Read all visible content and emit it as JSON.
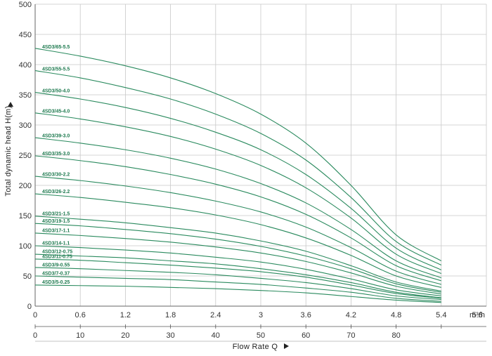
{
  "chart_data": {
    "type": "line",
    "title": "",
    "ylabel": "Total dynamic head H(m)",
    "xlabel": "Flow Rate Q",
    "x_unit": "m³/h",
    "xlim_m3h": [
      0,
      6.0
    ],
    "ylim": [
      0,
      500
    ],
    "grid": true,
    "y_ticks": [
      "0",
      "50",
      "100",
      "150",
      "200",
      "250",
      "300",
      "350",
      "400",
      "450",
      "500"
    ],
    "x_ticks_m3h": [
      "0",
      "0.6",
      "1.2",
      "1.8",
      "2.4",
      "3",
      "3.6",
      "4.2",
      "4.8",
      "5.4",
      "5.6"
    ],
    "x_ticks_secondary": [
      "0",
      "10",
      "20",
      "30",
      "40",
      "50",
      "60",
      "70",
      "80",
      ""
    ],
    "x": [
      0,
      0.6,
      1.2,
      1.8,
      2.4,
      3.0,
      3.6,
      4.2,
      4.8,
      5.4
    ],
    "series": [
      {
        "name": "4SD3/65-5.5",
        "values": [
          427,
          414,
          398,
          378,
          352,
          318,
          270,
          200,
          118,
          75
        ]
      },
      {
        "name": "4SD3/55-5.5",
        "values": [
          390,
          378,
          362,
          343,
          318,
          286,
          242,
          180,
          107,
          68
        ]
      },
      {
        "name": "4SD3/50-4.0",
        "values": [
          354,
          343,
          329,
          311,
          288,
          259,
          218,
          162,
          96,
          60
        ]
      },
      {
        "name": "4SD3/45-4.0",
        "values": [
          320,
          310,
          297,
          281,
          260,
          233,
          196,
          146,
          86,
          54
        ]
      },
      {
        "name": "4SD3/39-3.0",
        "values": [
          279,
          270,
          259,
          245,
          227,
          203,
          171,
          127,
          75,
          47
        ]
      },
      {
        "name": "4SD3/35-3.0",
        "values": [
          249,
          241,
          231,
          218,
          202,
          181,
          152,
          113,
          67,
          42
        ]
      },
      {
        "name": "4SD3/30-2.2",
        "values": [
          215,
          208,
          199,
          188,
          174,
          156,
          131,
          97,
          58,
          36
        ]
      },
      {
        "name": "4SD3/26-2.2",
        "values": [
          186,
          180,
          172,
          163,
          151,
          135,
          113,
          84,
          50,
          31
        ]
      },
      {
        "name": "4SD3/21-1.5",
        "values": [
          149,
          144,
          138,
          130,
          121,
          108,
          91,
          67,
          40,
          25
        ]
      },
      {
        "name": "4SD3/19-1.5",
        "values": [
          137,
          133,
          127,
          120,
          111,
          99,
          83,
          62,
          37,
          23
        ]
      },
      {
        "name": "4SD3/17-1.1",
        "values": [
          121,
          117,
          112,
          106,
          98,
          88,
          74,
          55,
          33,
          20
        ]
      },
      {
        "name": "4SD3/14-1.1",
        "values": [
          100,
          97,
          93,
          88,
          81,
          73,
          61,
          45,
          27,
          17
        ]
      },
      {
        "name": "4SD3/12-0.75",
        "values": [
          86,
          83,
          80,
          75,
          70,
          62,
          52,
          39,
          23,
          14
        ]
      },
      {
        "name": "4SD3/11-0.75",
        "values": [
          78,
          76,
          72,
          68,
          63,
          57,
          48,
          35,
          21,
          13
        ]
      },
      {
        "name": "4SD3/9-0.55",
        "values": [
          64,
          62,
          59,
          56,
          52,
          46,
          39,
          29,
          17,
          11
        ]
      },
      {
        "name": "4SD3/7-0.37",
        "values": [
          50,
          48,
          46,
          44,
          40,
          36,
          30,
          23,
          13,
          8
        ]
      },
      {
        "name": "4SD3/5-0.25",
        "values": [
          35,
          34,
          33,
          31,
          29,
          26,
          22,
          16,
          10,
          6
        ]
      }
    ]
  }
}
